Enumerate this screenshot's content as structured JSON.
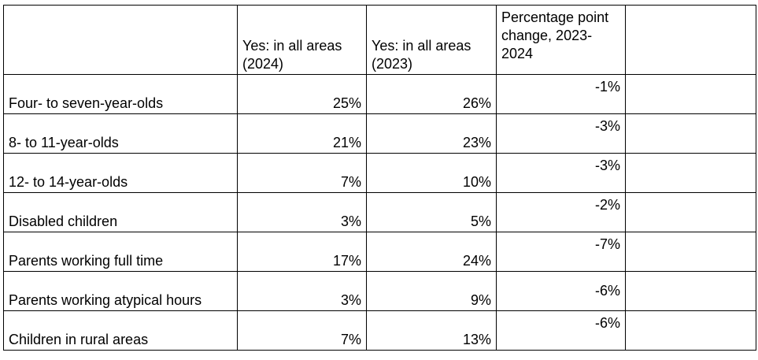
{
  "table": {
    "headers": [
      "",
      "Yes: in all areas (2024)",
      "Yes: in all areas (2023)",
      "Percentage point change, 2023-2024",
      ""
    ],
    "rows": [
      {
        "label": "Four- to seven-year-olds",
        "y2024": "25%",
        "y2023": "26%",
        "change": "-1%"
      },
      {
        "label": "8- to 11-year-olds",
        "y2024": "21%",
        "y2023": "23%",
        "change": "-3%"
      },
      {
        "label": "12- to 14-year-olds",
        "y2024": "7%",
        "y2023": "10%",
        "change": "-3%"
      },
      {
        "label": "Disabled children",
        "y2024": "3%",
        "y2023": "5%",
        "change": "-2%"
      },
      {
        "label": "Parents working full time",
        "y2024": "17%",
        "y2023": "24%",
        "change": "-7%"
      },
      {
        "label": "Parents working atypical hours",
        "y2024": "3%",
        "y2023": "9%",
        "change": "-6%"
      },
      {
        "label": "Children in rural areas",
        "y2024": "7%",
        "y2023": "13%",
        "change": "-6%"
      }
    ]
  }
}
